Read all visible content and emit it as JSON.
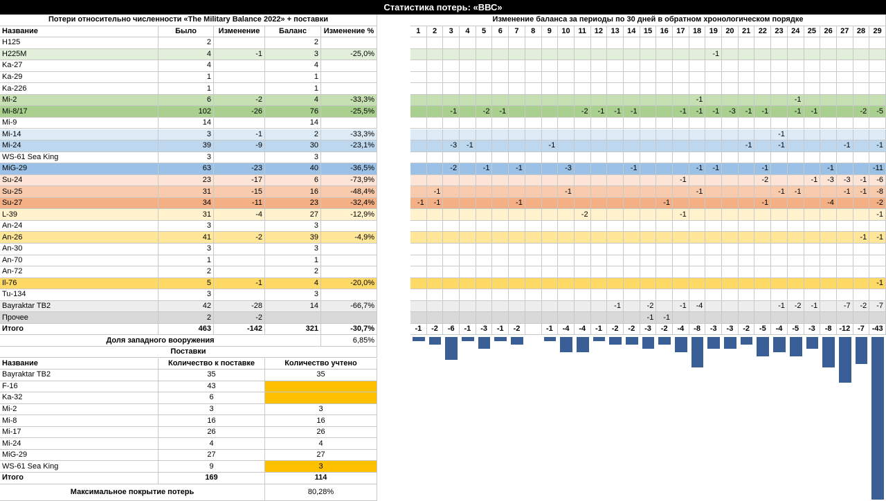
{
  "title": "Статистика потерь: «ВВС»",
  "losses": {
    "header": "Потери относительно численности «The Military Balance 2022» + поставки",
    "columns": [
      "Название",
      "Было",
      "Изменение",
      "Баланс",
      "Изменение %"
    ],
    "rows": [
      {
        "name": "H125",
        "was": "2",
        "change": "",
        "balance": "2",
        "pct": "",
        "color": "#ffffff"
      },
      {
        "name": "H225M",
        "was": "4",
        "change": "-1",
        "balance": "3",
        "pct": "-25,0%",
        "color": "#e2efda"
      },
      {
        "name": "Ka-27",
        "was": "4",
        "change": "",
        "balance": "4",
        "pct": "",
        "color": "#ffffff"
      },
      {
        "name": "Ka-29",
        "was": "1",
        "change": "",
        "balance": "1",
        "pct": "",
        "color": "#ffffff"
      },
      {
        "name": "Ka-226",
        "was": "1",
        "change": "",
        "balance": "1",
        "pct": "",
        "color": "#ffffff"
      },
      {
        "name": "Mi-2",
        "was": "6",
        "change": "-2",
        "balance": "4",
        "pct": "-33,3%",
        "color": "#c6e0b4"
      },
      {
        "name": "Mi-8/17",
        "was": "102",
        "change": "-26",
        "balance": "76",
        "pct": "-25,5%",
        "color": "#a9d08e"
      },
      {
        "name": "Mi-9",
        "was": "14",
        "change": "",
        "balance": "14",
        "pct": "",
        "color": "#ffffff"
      },
      {
        "name": "Mi-14",
        "was": "3",
        "change": "-1",
        "balance": "2",
        "pct": "-33,3%",
        "color": "#ddebf7"
      },
      {
        "name": "Mi-24",
        "was": "39",
        "change": "-9",
        "balance": "30",
        "pct": "-23,1%",
        "color": "#bdd7ee"
      },
      {
        "name": "WS-61 Sea King",
        "was": "3",
        "change": "",
        "balance": "3",
        "pct": "",
        "color": "#ffffff"
      },
      {
        "name": "MiG-29",
        "was": "63",
        "change": "-23",
        "balance": "40",
        "pct": "-36,5%",
        "color": "#9bc2e6"
      },
      {
        "name": "Su-24",
        "was": "23",
        "change": "-17",
        "balance": "6",
        "pct": "-73,9%",
        "color": "#fce4d6"
      },
      {
        "name": "Su-25",
        "was": "31",
        "change": "-15",
        "balance": "16",
        "pct": "-48,4%",
        "color": "#f8cbad"
      },
      {
        "name": "Su-27",
        "was": "34",
        "change": "-11",
        "balance": "23",
        "pct": "-32,4%",
        "color": "#f4b084"
      },
      {
        "name": "L-39",
        "was": "31",
        "change": "-4",
        "balance": "27",
        "pct": "-12,9%",
        "color": "#fff2cc"
      },
      {
        "name": "An-24",
        "was": "3",
        "change": "",
        "balance": "3",
        "pct": "",
        "color": "#ffffff"
      },
      {
        "name": "An-26",
        "was": "41",
        "change": "-2",
        "balance": "39",
        "pct": "-4,9%",
        "color": "#ffe699"
      },
      {
        "name": "An-30",
        "was": "3",
        "change": "",
        "balance": "3",
        "pct": "",
        "color": "#ffffff"
      },
      {
        "name": "An-70",
        "was": "1",
        "change": "",
        "balance": "1",
        "pct": "",
        "color": "#ffffff"
      },
      {
        "name": "An-72",
        "was": "2",
        "change": "",
        "balance": "2",
        "pct": "",
        "color": "#ffffff"
      },
      {
        "name": "Il-76",
        "was": "5",
        "change": "-1",
        "balance": "4",
        "pct": "-20,0%",
        "color": "#ffd966"
      },
      {
        "name": "Tu-134",
        "was": "3",
        "change": "",
        "balance": "3",
        "pct": "",
        "color": "#ffffff"
      },
      {
        "name": "Bayraktar TB2",
        "was": "42",
        "change": "-28",
        "balance": "14",
        "pct": "-66,7%",
        "color": "#ededed"
      },
      {
        "name": "Прочее",
        "was": "2",
        "change": "-2",
        "balance": "",
        "pct": "",
        "color": "#d9d9d9"
      }
    ],
    "total": {
      "name": "Итого",
      "was": "463",
      "change": "-142",
      "balance": "321",
      "pct": "-30,7%"
    },
    "western_share": {
      "label": "Доля западного вооружения",
      "value": "6,85%"
    }
  },
  "supplies": {
    "header": "Поставки",
    "columns": [
      "Название",
      "Количество к поставке",
      "Количество учтено"
    ],
    "highlight_color": "#ffc000",
    "rows": [
      {
        "name": "Bayraktar TB2",
        "qty": "35",
        "counted": "35",
        "highlight": false
      },
      {
        "name": "F-16",
        "qty": "43",
        "counted": "",
        "highlight": true
      },
      {
        "name": "Ka-32",
        "qty": "6",
        "counted": "",
        "highlight": true
      },
      {
        "name": "Mi-2",
        "qty": "3",
        "counted": "3",
        "highlight": false
      },
      {
        "name": "Mi-8",
        "qty": "16",
        "counted": "16",
        "highlight": false
      },
      {
        "name": "Mi-17",
        "qty": "26",
        "counted": "26",
        "highlight": false
      },
      {
        "name": "Mi-24",
        "qty": "4",
        "counted": "4",
        "highlight": false
      },
      {
        "name": "MiG-29",
        "qty": "27",
        "counted": "27",
        "highlight": false
      },
      {
        "name": "WS-61 Sea King",
        "qty": "9",
        "counted": "3",
        "highlight": true
      }
    ],
    "total": {
      "name": "Итого",
      "qty": "169",
      "counted": "114"
    },
    "coverage": {
      "label": "Максимальное покрытие потерь",
      "value": "80,28%"
    }
  },
  "periods": {
    "header": "Изменение баланса за периоды по 30 дней в обратном хронологическом порядке",
    "labels": [
      "1",
      "2",
      "3",
      "4",
      "5",
      "6",
      "7",
      "8",
      "9",
      "10",
      "11",
      "12",
      "13",
      "14",
      "15",
      "16",
      "17",
      "18",
      "19",
      "20",
      "21",
      "22",
      "23",
      "24",
      "25",
      "26",
      "27",
      "28",
      "29"
    ],
    "grid": [
      {},
      {
        "19": -1
      },
      {},
      {},
      {},
      {
        "18": -1,
        "24": -1
      },
      {
        "3": -1,
        "5": -2,
        "6": -1,
        "11": -2,
        "12": -1,
        "13": -1,
        "14": -1,
        "17": -1,
        "18": -1,
        "19": -1,
        "20": -3,
        "21": -1,
        "22": -1,
        "24": -1,
        "25": -1,
        "28": -2,
        "29": -5
      },
      {},
      {
        "23": -1
      },
      {
        "3": -3,
        "4": -1,
        "9": -1,
        "21": -1,
        "23": -1,
        "27": -1,
        "29": -1
      },
      {},
      {
        "3": -2,
        "5": -1,
        "7": -1,
        "10": -3,
        "14": -1,
        "18": -1,
        "19": -1,
        "22": -1,
        "26": -1,
        "29": -11
      },
      {
        "17": -1,
        "22": -2,
        "25": -1,
        "26": -3,
        "27": -3,
        "28": -1,
        "29": -6
      },
      {
        "2": -1,
        "10": -1,
        "18": -1,
        "23": -1,
        "24": -1,
        "27": -1,
        "28": -1,
        "29": -8
      },
      {
        "1": -1,
        "2": -1,
        "7": -1,
        "16": -1,
        "22": -1,
        "26": -4,
        "29": -2
      },
      {
        "11": -2,
        "17": -1,
        "29": -1
      },
      {},
      {
        "28": -1,
        "29": -1
      },
      {},
      {},
      {},
      {
        "29": -1
      },
      {},
      {
        "13": -1,
        "15": -2,
        "17": -1,
        "18": -4,
        "23": -1,
        "24": -2,
        "25": -1,
        "27": -7,
        "28": -2,
        "29": -7
      },
      {
        "15": -1,
        "16": -1
      }
    ],
    "totals": [
      -1,
      -2,
      -6,
      -1,
      -3,
      -1,
      -2,
      0,
      -1,
      -4,
      -4,
      -1,
      -2,
      -2,
      -3,
      -2,
      -4,
      -8,
      -3,
      -3,
      -2,
      -5,
      -4,
      -5,
      -3,
      -8,
      -12,
      -7,
      -43
    ]
  }
}
